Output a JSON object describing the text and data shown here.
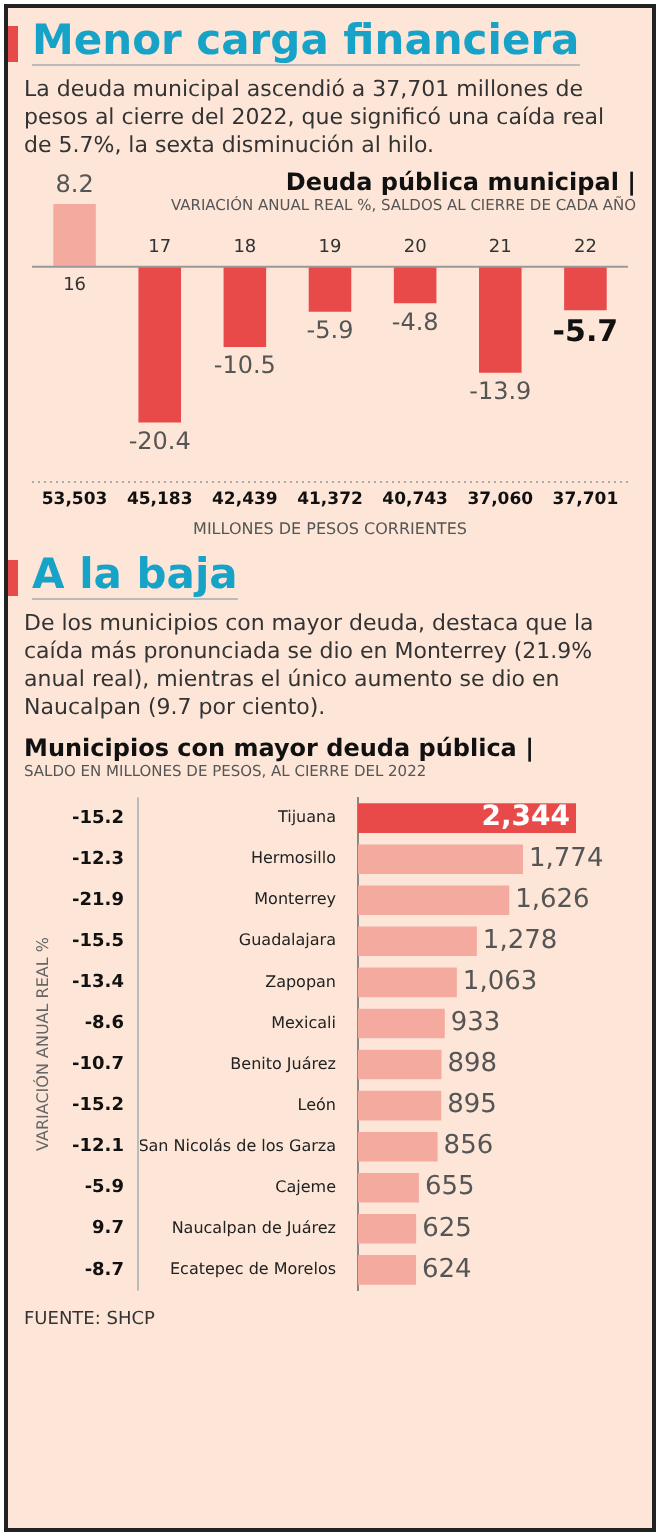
{
  "chart_data": [
    {
      "type": "bar",
      "title": "Deuda pública municipal |",
      "subtitle": "VARIACIÓN ANUAL REAL %, SALDOS AL CIERRE DE CADA AÑO",
      "categories": [
        "16",
        "17",
        "18",
        "19",
        "20",
        "21",
        "22"
      ],
      "values": [
        8.2,
        -20.4,
        -10.5,
        -5.9,
        -4.8,
        -13.9,
        -5.7
      ],
      "colors": [
        "#f5aaa0",
        "#e84a4a",
        "#e84a4a",
        "#e84a4a",
        "#e84a4a",
        "#e84a4a",
        "#e84a4a"
      ],
      "data_labels": true,
      "annotations": [
        "Menor carga financiera",
        "La deuda municipal ascendió a 37,701 millones de pesos al cierre del 2022, que significó una caída real de 5.7%, la sexta disminución al hilo.",
        "53,503",
        "45,183",
        "42,439",
        "41,372",
        "40,743",
        "37,060",
        "37,701",
        "MILLONES DE PESOS CORRIENTES"
      ]
    },
    {
      "type": "bar",
      "orientation": "horizontal",
      "title": "Municipios con mayor deuda pública |",
      "subtitle": "SALDO EN MILLONES DE PESOS, AL CIERRE DEL 2022",
      "ylabel": "VARIACIÓN ANUAL REAL %",
      "categories": [
        "Tijuana",
        "Hermosillo",
        "Monterrey",
        "Guadalajara",
        "Zapopan",
        "Mexicali",
        "Benito Juárez",
        "León",
        "San Nicolás de los Garza",
        "Cajeme",
        "Naucalpan de Juárez",
        "Ecatepec de Morelos"
      ],
      "values": [
        2344,
        1774,
        1626,
        1278,
        1063,
        933,
        898,
        895,
        856,
        655,
        625,
        624
      ],
      "value_labels": [
        "2,344",
        "1,774",
        "1,626",
        "1,278",
        "1,063",
        "933",
        "898",
        "895",
        "856",
        "655",
        "625",
        "624"
      ],
      "colors": [
        "#e84a4a",
        "#f5aaa0",
        "#f5aaa0",
        "#f5aaa0",
        "#f5aaa0",
        "#f5aaa0",
        "#f5aaa0",
        "#f5aaa0",
        "#f5aaa0",
        "#f5aaa0",
        "#f5aaa0",
        "#f5aaa0"
      ],
      "annotations": [
        "A la baja",
        "De los municipios con mayor deuda, destaca que la caída más pronunciada se dio en Monterrey (21.9% anual real), mientras el único aumento se dio en Naucalpan (9.7 por ciento).",
        "-15.2",
        "-12.3",
        "-21.9",
        "-15.5",
        "-13.4",
        "-8.6",
        "-10.7",
        "-15.2",
        "-12.1",
        "-5.9",
        "9.7",
        "-8.7",
        "FUENTE: SHCP"
      ]
    }
  ]
}
